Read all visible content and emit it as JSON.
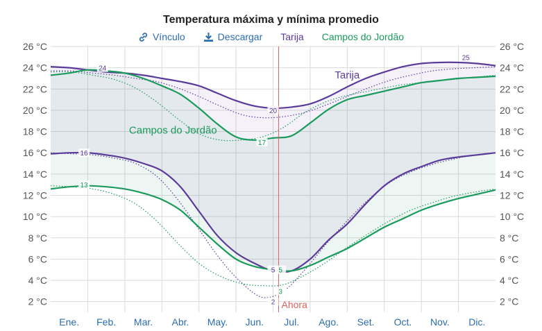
{
  "title": "Temperatura máxima y mínima promedio",
  "toolbar": {
    "link_label": "Vínculo",
    "download_label": "Descargar",
    "legend_tarija": "Tarija",
    "legend_campos": "Campos do Jordão"
  },
  "colors": {
    "tarija": "#5b3b9a",
    "campos": "#1a9a5c",
    "now_line": "#e06060",
    "link": "#2b6cb0",
    "grid": "#d9d9d9"
  },
  "chart_data": {
    "type": "line",
    "title": "Temperatura máxima y mínima promedio",
    "ylim": [
      1,
      26
    ],
    "y_ticks": [
      2,
      4,
      6,
      8,
      10,
      12,
      14,
      16,
      18,
      20,
      22,
      24,
      26
    ],
    "y_tick_labels": [
      "2 °C",
      "4 °C",
      "6 °C",
      "8 °C",
      "10 °C",
      "12 °C",
      "14 °C",
      "16 °C",
      "18 °C",
      "20 °C",
      "22 °C",
      "24 °C",
      "26 °C"
    ],
    "months": [
      "Ene.",
      "Feb.",
      "Mar.",
      "Abr.",
      "May.",
      "Jun.",
      "Jul.",
      "Ago.",
      "Set.",
      "Oct.",
      "Nov.",
      "Dic."
    ],
    "x": [
      0,
      0.5,
      1,
      1.5,
      2,
      2.5,
      3,
      3.5,
      4,
      4.5,
      5,
      5.5,
      6,
      6.5,
      7,
      7.5,
      8,
      8.5,
      9,
      9.5,
      10,
      10.5,
      11,
      11.5,
      12
    ],
    "now_month": 6.15,
    "now_label": "Ahora",
    "series": [
      {
        "name": "Tarija",
        "kind": "max",
        "values": [
          24.1,
          24.0,
          23.8,
          23.6,
          23.5,
          23.3,
          23.0,
          22.7,
          22.3,
          21.6,
          20.9,
          20.4,
          20.2,
          20.3,
          20.6,
          21.3,
          22.2,
          23.0,
          23.6,
          24.1,
          24.4,
          24.5,
          24.5,
          24.4,
          24.2
        ]
      },
      {
        "name": "Tarija",
        "kind": "min",
        "values": [
          15.9,
          16.0,
          16.0,
          15.8,
          15.5,
          15.0,
          14.3,
          12.8,
          10.5,
          8.2,
          6.6,
          5.6,
          4.9,
          4.9,
          6.0,
          7.8,
          9.3,
          11.2,
          12.9,
          14.0,
          14.7,
          15.3,
          15.6,
          15.8,
          16.0
        ]
      },
      {
        "name": "Campos do Jordão",
        "kind": "max",
        "values": [
          23.3,
          23.5,
          23.8,
          23.7,
          23.5,
          23.0,
          22.3,
          21.5,
          20.2,
          18.7,
          17.5,
          17.2,
          17.4,
          17.6,
          18.8,
          20.1,
          21.0,
          21.4,
          21.8,
          22.2,
          22.6,
          22.8,
          23.0,
          23.1,
          23.2
        ]
      },
      {
        "name": "Campos do Jordão",
        "kind": "min",
        "values": [
          12.6,
          12.8,
          12.9,
          12.8,
          12.6,
          12.2,
          11.6,
          10.6,
          9.0,
          7.4,
          6.0,
          5.3,
          5.0,
          4.9,
          5.4,
          6.2,
          7.0,
          8.0,
          9.0,
          9.8,
          10.6,
          11.2,
          11.7,
          12.1,
          12.5
        ]
      }
    ],
    "dotted_series": [
      {
        "name": "Tarija",
        "kind": "max",
        "values": [
          23.7,
          23.7,
          23.5,
          23.3,
          23.0,
          22.7,
          22.1,
          21.3,
          20.4,
          19.6,
          19.3,
          19.4,
          19.8,
          20.5,
          21.3,
          22.1,
          22.8,
          23.3,
          23.7,
          23.9,
          24.0,
          24.1
        ]
      },
      {
        "name": "Tarija",
        "kind": "min",
        "values": [
          16.0,
          15.9,
          15.8,
          15.5,
          15.0,
          13.8,
          11.6,
          8.8,
          6.0,
          3.8,
          2.4,
          3.0,
          5.0,
          7.4,
          9.6,
          11.6,
          13.2,
          14.2,
          14.9,
          15.4,
          15.8,
          16.0
        ]
      },
      {
        "name": "Campos do Jordão",
        "kind": "max",
        "values": [
          23.6,
          23.6,
          23.3,
          22.9,
          22.1,
          20.8,
          19.2,
          17.8,
          17.2,
          17.2,
          17.5,
          18.4,
          19.8,
          20.8,
          21.4,
          21.8,
          22.2,
          22.5,
          22.7,
          22.9,
          23.1,
          23.3
        ]
      },
      {
        "name": "Campos do Jordão",
        "kind": "min",
        "values": [
          12.9,
          12.8,
          12.6,
          12.1,
          11.2,
          9.6,
          7.5,
          5.6,
          4.4,
          3.7,
          3.5,
          3.6,
          4.5,
          5.7,
          7.1,
          8.4,
          9.6,
          10.6,
          11.3,
          11.9,
          12.3,
          12.6
        ]
      }
    ],
    "point_labels": [
      {
        "series": "Tarija",
        "kind": "max",
        "x": 1.4,
        "y": 24,
        "text": "24"
      },
      {
        "series": "Tarija",
        "kind": "max",
        "x": 6.0,
        "y": 20,
        "text": "20"
      },
      {
        "series": "Tarija",
        "kind": "max",
        "x": 11.2,
        "y": 25,
        "text": "25"
      },
      {
        "series": "Tarija",
        "kind": "min",
        "x": 0.9,
        "y": 16,
        "text": "16"
      },
      {
        "series": "Tarija",
        "kind": "min",
        "x": 6.0,
        "y": 5,
        "text": "5"
      },
      {
        "series": "Tarija",
        "kind": "min",
        "x": 6.0,
        "y": 2,
        "text": "2"
      },
      {
        "series": "Campos do Jordão",
        "kind": "max",
        "x": 5.7,
        "y": 17,
        "text": "17"
      },
      {
        "series": "Campos do Jordão",
        "kind": "min",
        "x": 0.9,
        "y": 13,
        "text": "13"
      },
      {
        "series": "Campos do Jordão",
        "kind": "min",
        "x": 6.2,
        "y": 5,
        "text": "5"
      },
      {
        "series": "Campos do Jordão",
        "kind": "min",
        "x": 6.2,
        "y": 3,
        "text": "3"
      }
    ],
    "series_labels": [
      {
        "text": "Tarija",
        "series": "Tarija"
      },
      {
        "text": "Campos do Jordão",
        "series": "Campos do Jordão"
      }
    ]
  }
}
